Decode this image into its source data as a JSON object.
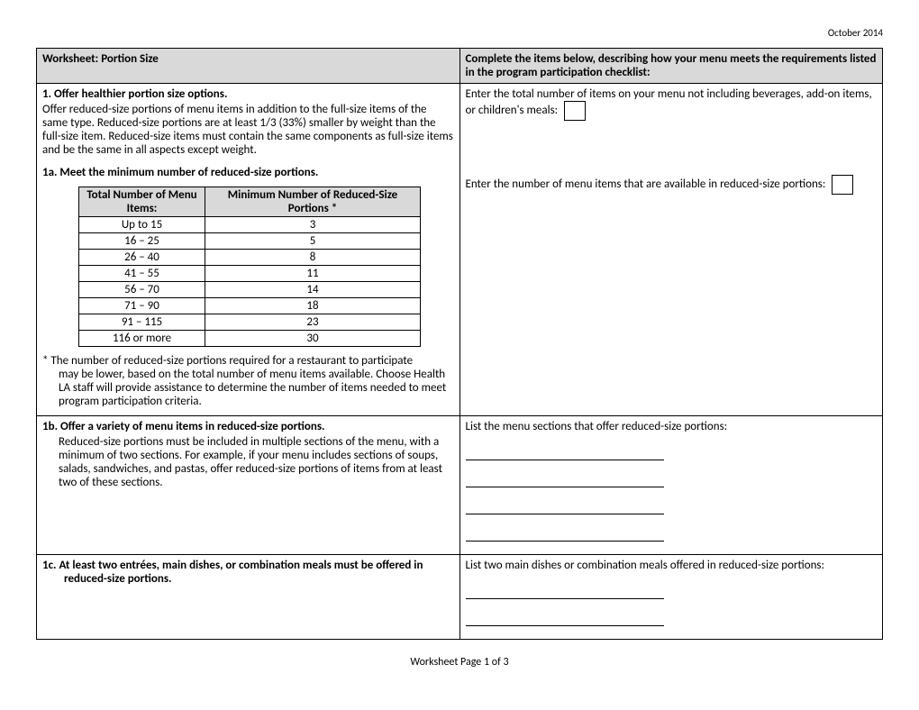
{
  "date": "October 2014",
  "header": {
    "left": "Worksheet: Portion Size",
    "right": "Complete the items below, describing how your menu meets the requirements listed in the program participation checklist:"
  },
  "section1": {
    "title": "1.   Offer healthier portion size options.",
    "body": "Offer reduced-size portions of menu items in addition to the full-size items of the same type. Reduced-size portions are at least 1/3 (33%) smaller by weight than the full-size item. Reduced-size items must contain the same components as full-size items and be the same in all aspects except weight.",
    "right": "Enter the total number of items on your menu not including beverages, add-on items, or children's meals:"
  },
  "section1a": {
    "title": "1a. Meet the minimum number of reduced-size portions.",
    "right": "Enter the number of  menu items that are available in reduced-size portions:",
    "table": {
      "col1": "Total Number of Menu Items:",
      "col2": "Minimum Number of Reduced-Size Portions *",
      "rows": [
        [
          "Up to 15",
          "3"
        ],
        [
          "16 – 25",
          "5"
        ],
        [
          "26 – 40",
          "8"
        ],
        [
          "41 – 55",
          "11"
        ],
        [
          "56 – 70",
          "14"
        ],
        [
          "71 – 90",
          "18"
        ],
        [
          "91 – 115",
          "23"
        ],
        [
          "116 or more",
          "30"
        ]
      ]
    },
    "footnote_first": "* The number of reduced-size portions required for a restaurant to participate",
    "footnote_rest": "may be lower, based on the total number of menu items available. Choose Health LA staff will provide assistance to determine the number of items needed to meet program participation criteria."
  },
  "section1b": {
    "title": "1b. Offer a variety of menu items in reduced-size portions.",
    "body": "Reduced-size portions must be included in multiple sections of the menu, with a minimum of two sections. For example, if your menu includes sections of soups, salads, sandwiches, and pastas, offer reduced-size portions of items from at least two of these sections.",
    "right": "List the menu sections that offer reduced-size portions:"
  },
  "section1c": {
    "title": "1c. At least two entrées, main dishes, or combination meals must be offered in reduced-size portions.",
    "right": "List two main dishes or combination meals offered in reduced-size portions:"
  },
  "footer": "Worksheet Page 1 of 3"
}
